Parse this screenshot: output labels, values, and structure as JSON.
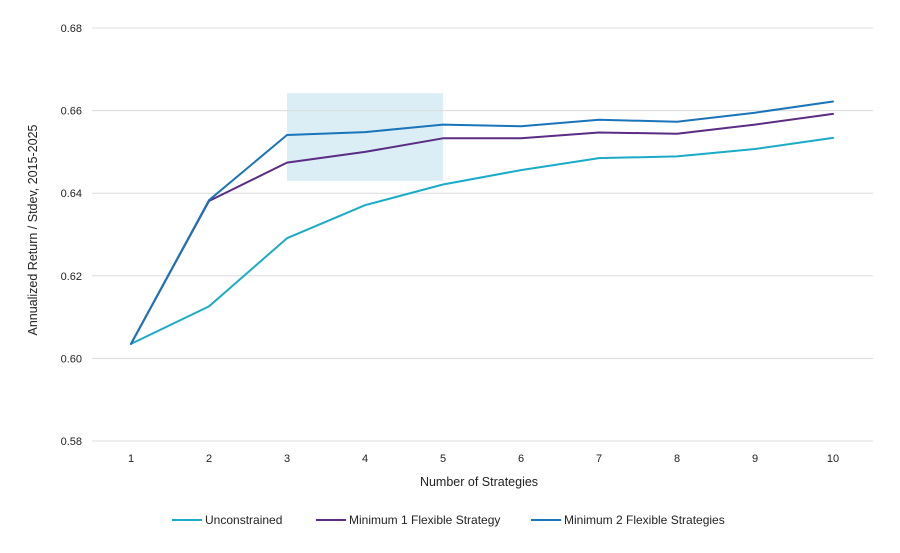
{
  "chart_data": {
    "type": "line",
    "title": "",
    "xlabel": "Number of Strategies",
    "ylabel": "Annualized Return / Stdev, 2015-2025",
    "x": [
      1,
      2,
      3,
      4,
      5,
      6,
      7,
      8,
      9,
      10
    ],
    "x_tick_labels": [
      "1",
      "2",
      "3",
      "4",
      "5",
      "6",
      "7",
      "8",
      "9",
      "10"
    ],
    "ylim": [
      0.58,
      0.68
    ],
    "y_ticks": [
      0.58,
      0.6,
      0.62,
      0.64,
      0.66,
      0.68
    ],
    "y_tick_labels": [
      "0.58",
      "0.60",
      "0.62",
      "0.64",
      "0.66",
      "0.68"
    ],
    "grid": true,
    "legend_position": "bottom",
    "highlight_region": {
      "x_range": [
        3,
        5
      ],
      "y_range": [
        0.643,
        0.6642
      ],
      "color": "#dbeef6"
    },
    "series": [
      {
        "name": "Unconstrained",
        "color": "#1aabc8",
        "values": [
          0.6035,
          0.6126,
          0.6291,
          0.6371,
          0.6421,
          0.6456,
          0.6485,
          0.6489,
          0.6507,
          0.6534
        ]
      },
      {
        "name": "Minimum 1 Flexible Strategy",
        "color": "#5b2c83",
        "values": [
          0.6035,
          0.6381,
          0.6474,
          0.65,
          0.6533,
          0.6533,
          0.6547,
          0.6544,
          0.6566,
          0.6592
        ]
      },
      {
        "name": "Minimum 2 Flexible Strategies",
        "color": "#1a74b9",
        "values": [
          0.6035,
          0.6383,
          0.6541,
          0.6548,
          0.6566,
          0.6562,
          0.6578,
          0.6573,
          0.6595,
          0.6622
        ]
      }
    ]
  }
}
